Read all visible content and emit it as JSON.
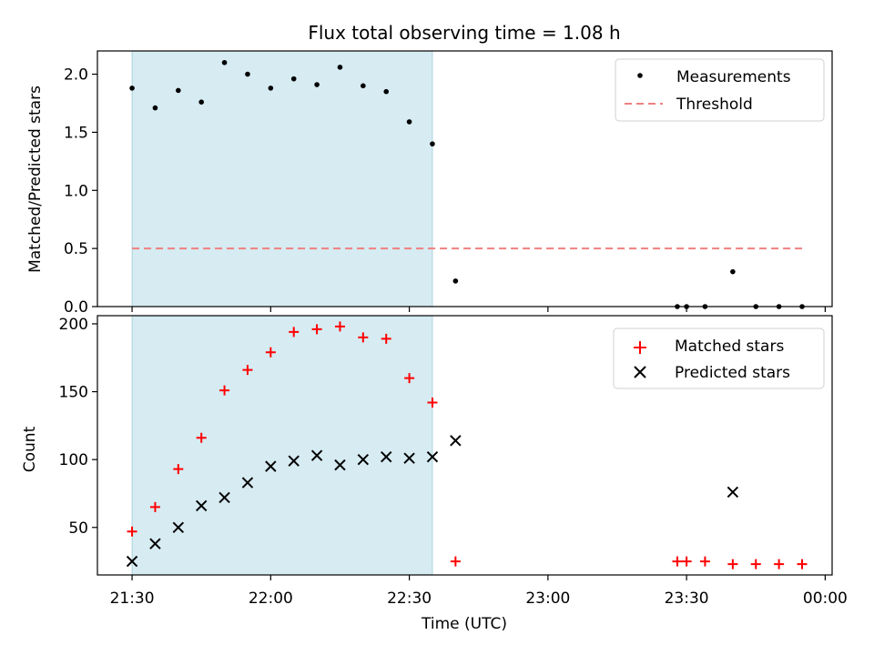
{
  "chart_data": [
    {
      "type": "scatter",
      "title": "Flux total observing time = 1.08 h",
      "xlabel": "",
      "ylabel": "Matched/Predicted stars",
      "x_ticks": [
        "21:30",
        "22:00",
        "22:30",
        "23:00",
        "23:30",
        "00:00"
      ],
      "ylim": [
        0,
        2.2
      ],
      "y_ticks": [
        "0.0",
        "0.5",
        "1.0",
        "1.5",
        "2.0"
      ],
      "x_range_minutes_after_2130": [
        -7.5,
        151.5
      ],
      "shaded_interval": [
        "21:30",
        "22:35"
      ],
      "shaded_color": "#add8e6",
      "legend_position": "top-right",
      "series": [
        {
          "name": "Measurements",
          "marker": "dot",
          "color": "#000000",
          "x": [
            "21:30",
            "21:35",
            "21:40",
            "21:45",
            "21:50",
            "21:55",
            "22:00",
            "22:05",
            "22:10",
            "22:15",
            "22:20",
            "22:25",
            "22:30",
            "22:35",
            "22:40",
            "23:28",
            "23:30",
            "23:34",
            "23:40",
            "23:45",
            "23:50",
            "23:55"
          ],
          "y": [
            1.88,
            1.71,
            1.86,
            1.76,
            2.1,
            2.0,
            1.88,
            1.96,
            1.91,
            2.06,
            1.9,
            1.85,
            1.59,
            1.4,
            0.22,
            0.0,
            0.0,
            0.0,
            0.3,
            0.0,
            0.0,
            0.0
          ]
        },
        {
          "name": "Threshold",
          "style": "dashed-line",
          "color": "#f08080",
          "x": [
            "21:30",
            "23:55"
          ],
          "y": [
            0.5,
            0.5
          ]
        }
      ]
    },
    {
      "type": "scatter",
      "title": "",
      "xlabel": "Time (UTC)",
      "ylabel": "Count",
      "x_ticks": [
        "21:30",
        "22:00",
        "22:30",
        "23:00",
        "23:30",
        "00:00"
      ],
      "ylim": [
        15,
        206
      ],
      "y_ticks": [
        "50",
        "100",
        "150",
        "200"
      ],
      "x_range_minutes_after_2130": [
        -7.5,
        151.5
      ],
      "shaded_interval": [
        "21:30",
        "22:35"
      ],
      "shaded_color": "#add8e6",
      "legend_position": "top-right",
      "series": [
        {
          "name": "Matched stars",
          "marker": "plus",
          "color": "#ff0000",
          "x": [
            "21:30",
            "21:35",
            "21:40",
            "21:45",
            "21:50",
            "21:55",
            "22:00",
            "22:05",
            "22:10",
            "22:15",
            "22:20",
            "22:25",
            "22:30",
            "22:35",
            "22:40",
            "23:28",
            "23:30",
            "23:34",
            "23:40",
            "23:45",
            "23:50",
            "23:55"
          ],
          "y": [
            47,
            65,
            93,
            116,
            151,
            166,
            179,
            194,
            196,
            198,
            190,
            189,
            160,
            142,
            25,
            25,
            25,
            25,
            23,
            23,
            23,
            23
          ]
        },
        {
          "name": "Predicted stars",
          "marker": "x",
          "color": "#000000",
          "x": [
            "21:30",
            "21:35",
            "21:40",
            "21:45",
            "21:50",
            "21:55",
            "22:00",
            "22:05",
            "22:10",
            "22:15",
            "22:20",
            "22:25",
            "22:30",
            "22:35",
            "22:40",
            "23:40"
          ],
          "y": [
            25,
            38,
            50,
            66,
            72,
            83,
            95,
            99,
            103,
            96,
            100,
            102,
            101,
            102,
            114,
            76
          ]
        }
      ]
    }
  ]
}
